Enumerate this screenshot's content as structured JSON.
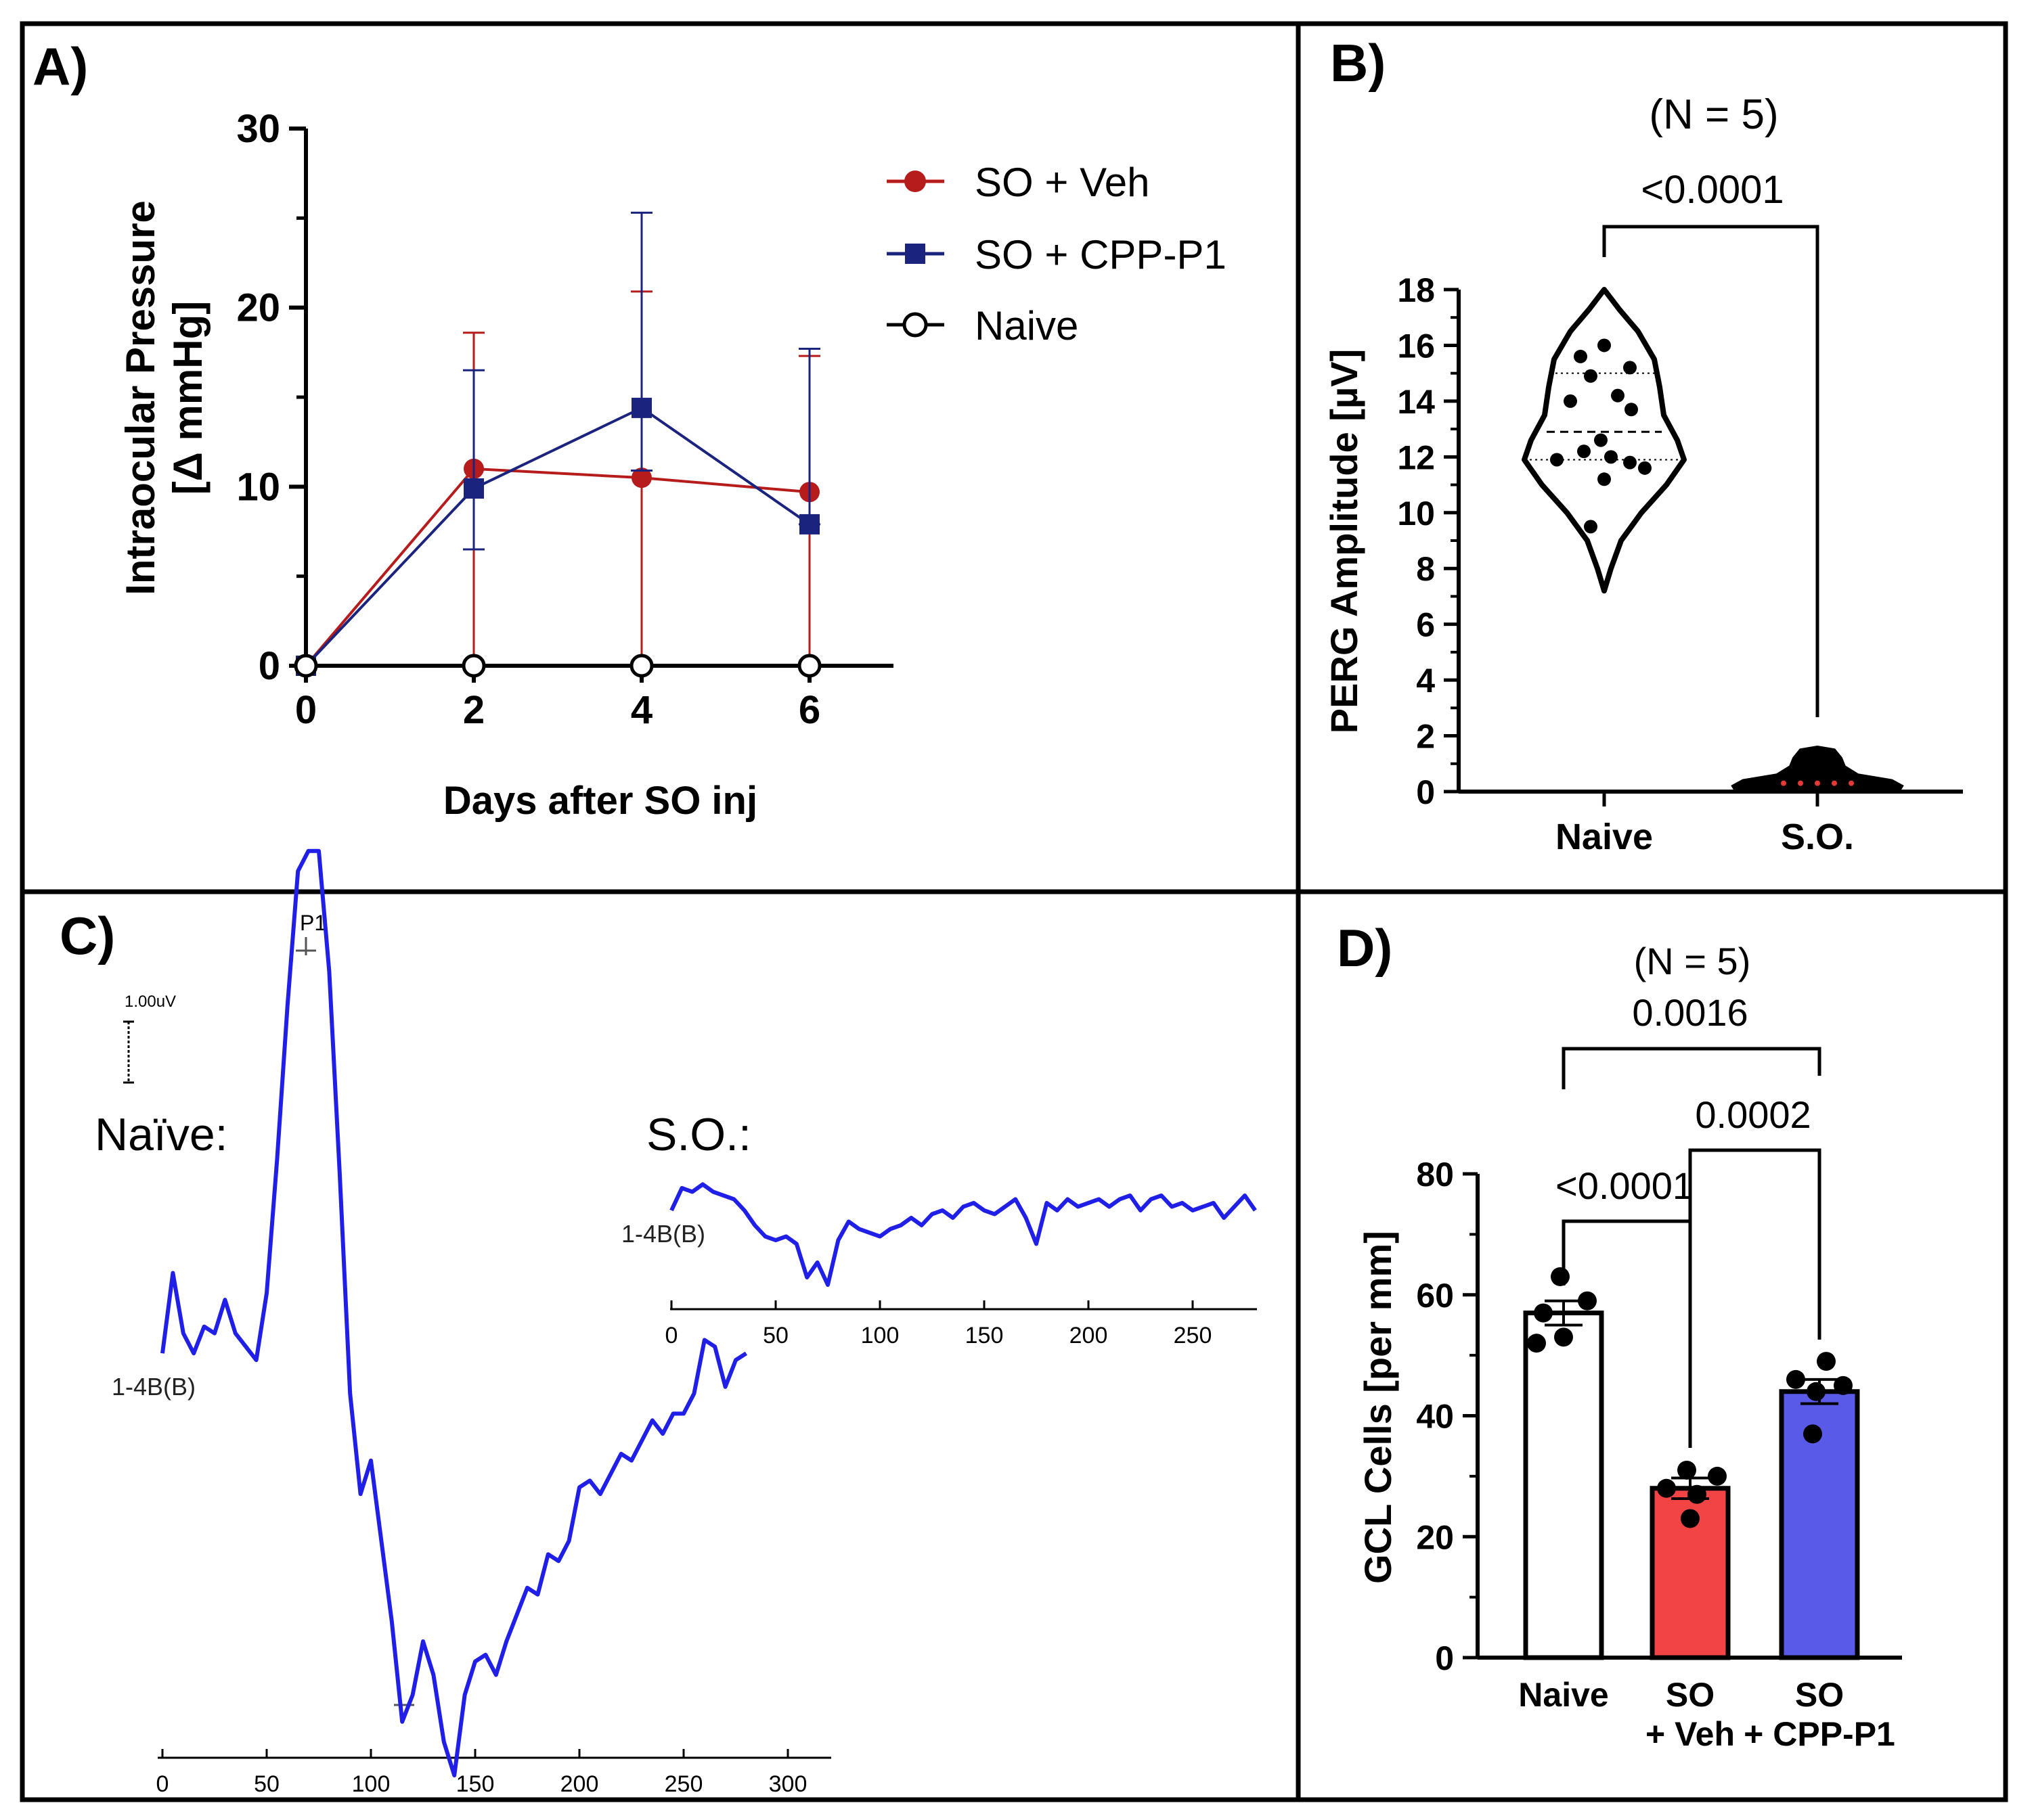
{
  "figure": {
    "panel_labels": [
      "A)",
      "B)",
      "C)",
      "D)"
    ]
  },
  "chart_data": [
    {
      "panel": "A",
      "type": "line",
      "title": "",
      "ylabel_line1": "Intraocular Pressure",
      "ylabel_line2": "[Δ mmHg]",
      "xlabel": "Days after SO inj",
      "x": [
        0,
        2,
        4,
        6
      ],
      "x_ticks": [
        "0",
        "2",
        "4",
        "6"
      ],
      "ylim": [
        0,
        30
      ],
      "y_ticks": [
        "0",
        "10",
        "20",
        "30"
      ],
      "legend_position": "top-right",
      "series": [
        {
          "name": "SO + Veh",
          "color": "#b71c1c",
          "marker": "circle-filled",
          "values": [
            0,
            11.0,
            10.5,
            9.7
          ],
          "err_upper": [
            0,
            18.6,
            20.9,
            17.3
          ],
          "err_lower": [
            0,
            11.0,
            10.5,
            9.7
          ]
        },
        {
          "name": "SO + CPP-P1",
          "color": "#1a237e",
          "marker": "square-filled",
          "values": [
            0,
            9.9,
            14.4,
            7.9
          ],
          "err_upper": [
            0,
            16.5,
            25.3,
            17.7
          ],
          "err_lower": [
            0,
            3.4,
            3.5,
            0
          ]
        },
        {
          "name": "Naive",
          "color": "#000000",
          "marker": "circle-open",
          "values": [
            0,
            0,
            0,
            0
          ]
        }
      ]
    },
    {
      "panel": "B",
      "type": "violin",
      "n_label": "(N = 5)",
      "p_value": "<0.0001",
      "ylabel": "PERG Amplitude [µV]",
      "categories": [
        "Naive",
        "S.O."
      ],
      "ylim": [
        0,
        18
      ],
      "y_ticks": [
        "0",
        "2",
        "4",
        "6",
        "8",
        "10",
        "12",
        "14",
        "16",
        "18"
      ],
      "groups": [
        {
          "name": "Naive",
          "min": 7.2,
          "max": 18.0,
          "median": 12.9,
          "q1": 11.9,
          "q3": 15.0,
          "points": [
            16.0,
            15.6,
            15.2,
            14.9,
            14.0,
            14.2,
            13.7,
            12.6,
            12.2,
            12.0,
            11.9,
            11.8,
            11.6,
            11.2,
            9.5
          ]
        },
        {
          "name": "S.O.",
          "min": 0.0,
          "max": 1.6,
          "median": 0.3,
          "q1": 0.2,
          "q3": 0.4,
          "points": [
            0.3,
            0.3,
            0.3,
            0.3,
            0.3
          ]
        }
      ]
    },
    {
      "panel": "C",
      "type": "line",
      "scale_label": "1.00uV",
      "peak_label": "P1",
      "channel_label": "1-4B(B)",
      "naive_trace": {
        "label": "Naïve:",
        "color": "#1f1fe8",
        "x_ticks": [
          "0",
          "50",
          "100",
          "150",
          "200",
          "250",
          "300"
        ],
        "x": [
          0,
          5,
          10,
          15,
          20,
          25,
          30,
          35,
          40,
          45,
          50,
          55,
          60,
          65,
          70,
          75,
          80,
          85,
          90,
          95,
          100,
          105,
          110,
          115,
          120,
          125,
          130,
          135,
          140,
          145,
          150,
          155,
          160,
          165,
          170,
          175,
          180,
          185,
          190,
          195,
          200,
          205,
          210,
          215,
          220,
          225,
          230,
          235,
          240,
          245,
          250,
          255,
          260,
          265,
          270,
          275,
          280
        ],
        "y": [
          0.3,
          1.5,
          0.6,
          0.3,
          0.7,
          0.6,
          1.1,
          0.6,
          0.4,
          0.2,
          1.2,
          3.2,
          5.5,
          7.5,
          7.8,
          7.8,
          6.0,
          3.0,
          -0.3,
          -1.8,
          -1.3,
          -2.5,
          -3.7,
          -5.2,
          -4.8,
          -4.0,
          -4.5,
          -5.5,
          -6.0,
          -4.8,
          -4.3,
          -4.2,
          -4.5,
          -4.0,
          -3.6,
          -3.2,
          -3.3,
          -2.7,
          -2.8,
          -2.5,
          -1.7,
          -1.6,
          -1.8,
          -1.5,
          -1.2,
          -1.3,
          -1.0,
          -0.7,
          -0.9,
          -0.6,
          -0.6,
          -0.3,
          0.5,
          0.4,
          -0.2,
          0.2,
          0.3
        ]
      },
      "so_trace": {
        "label": "S.O.:",
        "color": "#1f1fe8",
        "x_ticks": [
          "0",
          "50",
          "100",
          "150",
          "200",
          "250"
        ],
        "x": [
          0,
          5,
          10,
          15,
          20,
          25,
          30,
          35,
          40,
          45,
          50,
          55,
          60,
          65,
          70,
          75,
          80,
          85,
          90,
          95,
          100,
          105,
          110,
          115,
          120,
          125,
          130,
          135,
          140,
          145,
          150,
          155,
          160,
          165,
          170,
          175,
          180,
          185,
          190,
          195,
          200,
          205,
          210,
          215,
          220,
          225,
          230,
          235,
          240,
          245,
          250,
          255,
          260,
          265,
          270,
          275,
          280
        ],
        "y": [
          0.2,
          0.8,
          0.7,
          0.9,
          0.7,
          0.6,
          0.5,
          0.2,
          -0.2,
          -0.5,
          -0.6,
          -0.5,
          -0.7,
          -1.6,
          -1.2,
          -1.8,
          -0.6,
          -0.1,
          -0.3,
          -0.4,
          -0.5,
          -0.3,
          -0.2,
          0.0,
          -0.2,
          0.1,
          0.2,
          0.0,
          0.3,
          0.4,
          0.2,
          0.1,
          0.3,
          0.5,
          0.0,
          -0.7,
          0.4,
          0.2,
          0.5,
          0.3,
          0.4,
          0.5,
          0.3,
          0.5,
          0.6,
          0.2,
          0.5,
          0.6,
          0.3,
          0.4,
          0.2,
          0.3,
          0.4,
          0.0,
          0.3,
          0.6,
          0.2
        ]
      }
    },
    {
      "panel": "D",
      "type": "bar",
      "n_label": "(N = 5)",
      "ylabel": "GCL Cells [per mm]",
      "categories_line1": [
        "Naive",
        "SO",
        "SO"
      ],
      "categories_line2": [
        "",
        "+ Veh",
        "+ CPP-P1"
      ],
      "values": [
        57,
        28,
        44
      ],
      "errors": [
        2.0,
        1.7,
        2.0
      ],
      "colors": [
        "#ffffff",
        "#f24444",
        "#5a5ae8"
      ],
      "points": [
        [
          63,
          59,
          57,
          53,
          52
        ],
        [
          31,
          30,
          28,
          27,
          23
        ],
        [
          49,
          46,
          45,
          44,
          37
        ]
      ],
      "ylim": [
        0,
        80
      ],
      "y_ticks": [
        "0",
        "20",
        "40",
        "60",
        "80"
      ],
      "comparisons": [
        {
          "label": "0.0016"
        },
        {
          "label": "0.0002"
        },
        {
          "label": "<0.0001"
        }
      ]
    }
  ]
}
